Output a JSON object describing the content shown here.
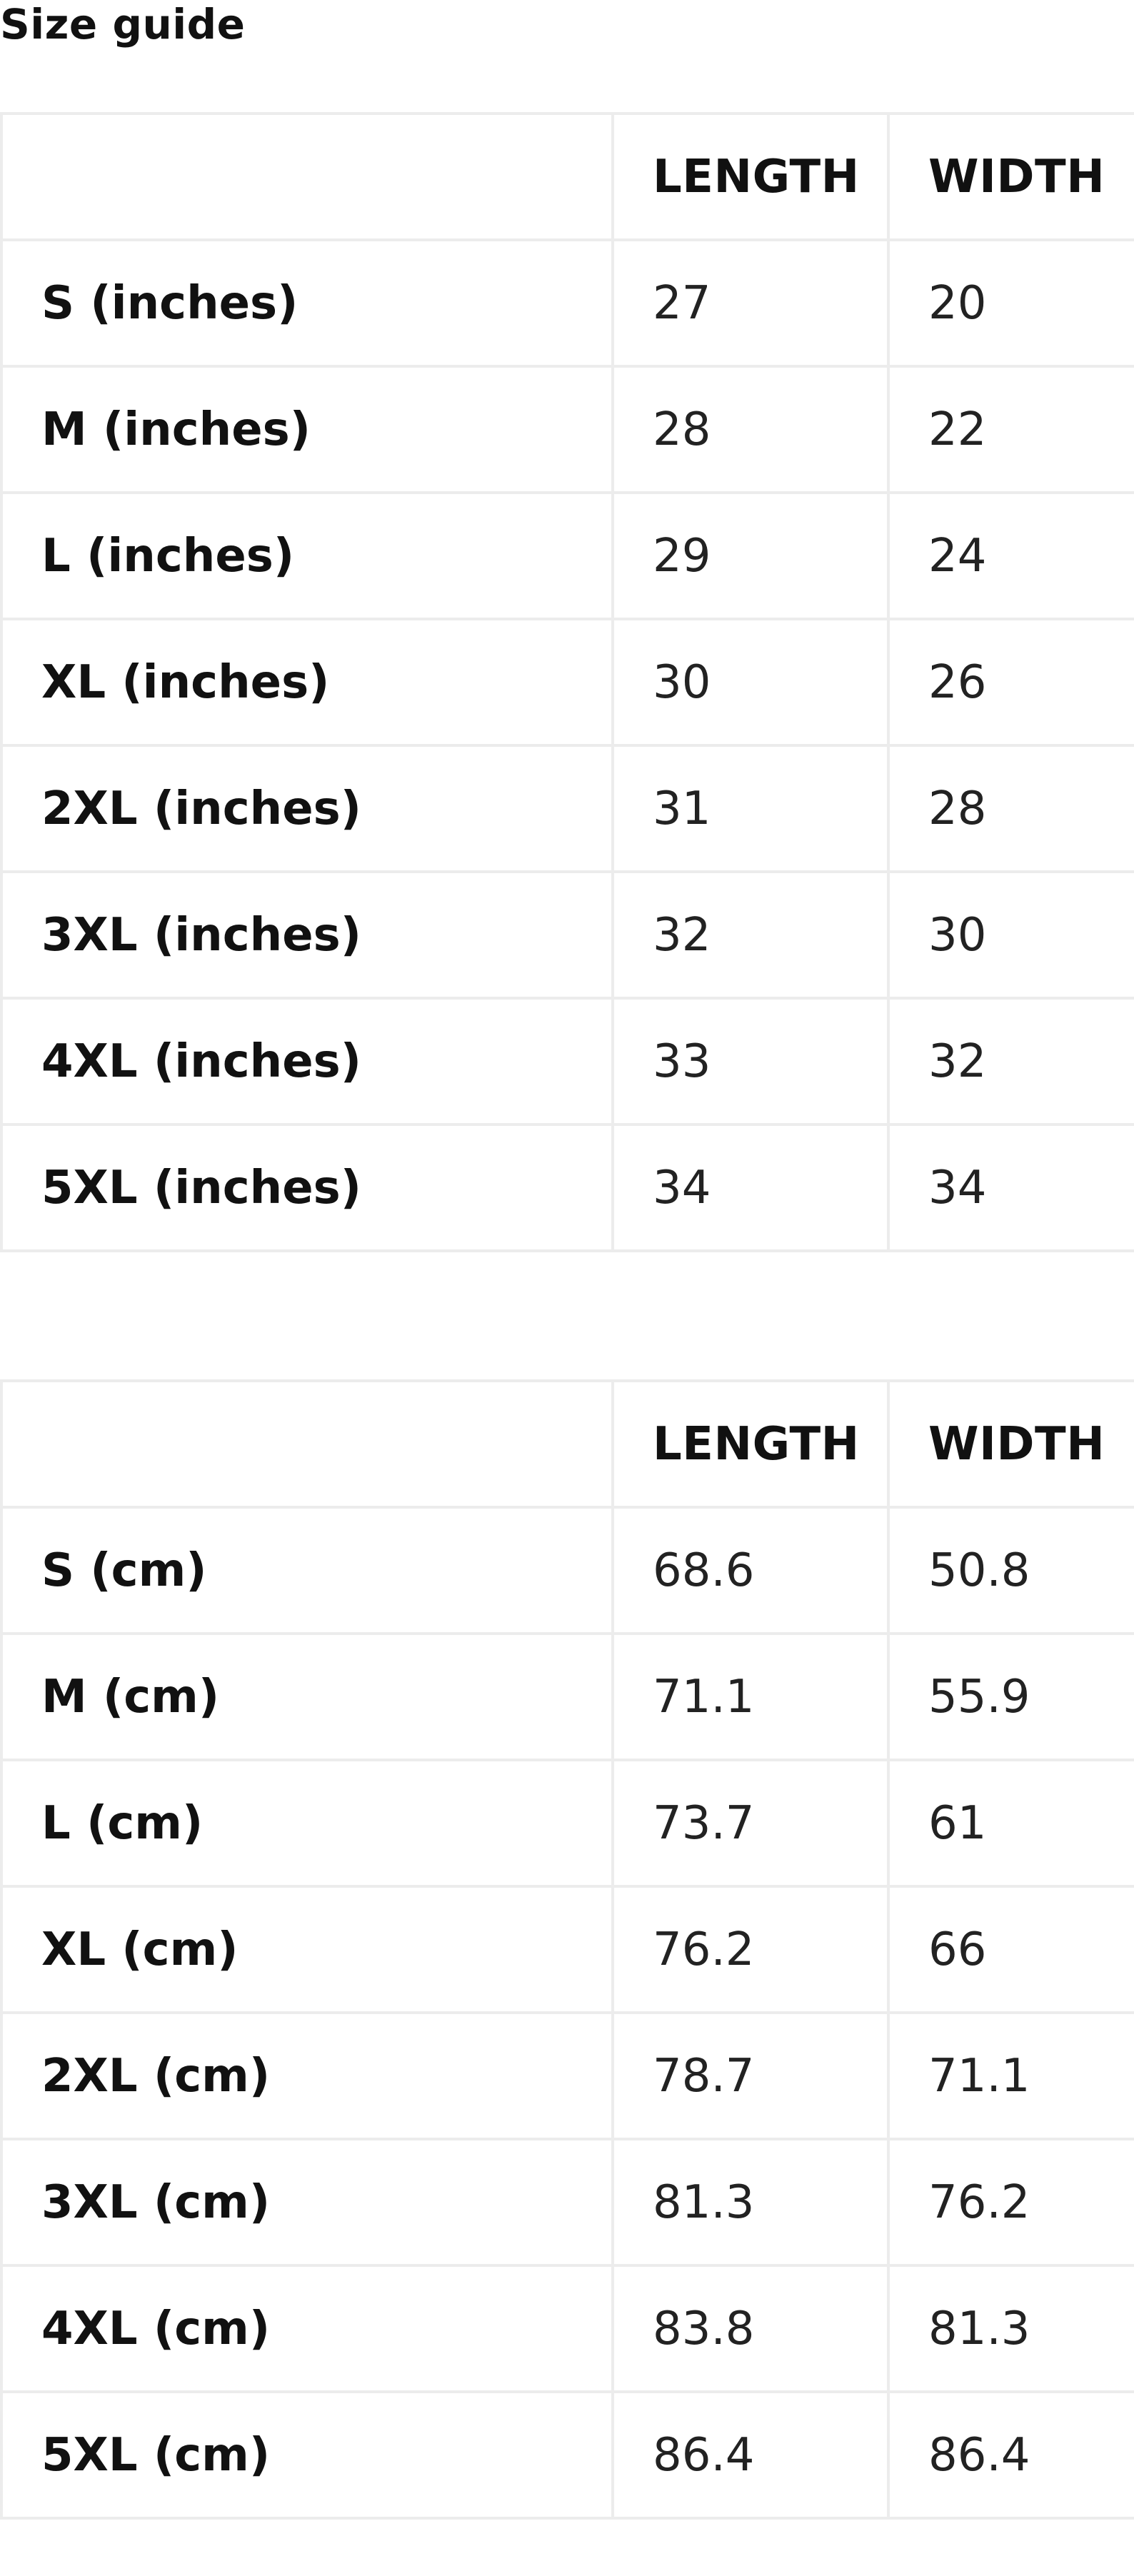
{
  "title": "Size guide",
  "tables": [
    {
      "headers": [
        "",
        "LENGTH",
        "WIDTH"
      ],
      "rows": [
        {
          "size": "S (inches)",
          "length": "27",
          "width": "20"
        },
        {
          "size": "M (inches)",
          "length": "28",
          "width": "22"
        },
        {
          "size": "L (inches)",
          "length": "29",
          "width": "24"
        },
        {
          "size": "XL (inches)",
          "length": "30",
          "width": "26"
        },
        {
          "size": "2XL (inches)",
          "length": "31",
          "width": "28"
        },
        {
          "size": "3XL (inches)",
          "length": "32",
          "width": "30"
        },
        {
          "size": "4XL (inches)",
          "length": "33",
          "width": "32"
        },
        {
          "size": "5XL (inches)",
          "length": "34",
          "width": "34"
        }
      ]
    },
    {
      "headers": [
        "",
        "LENGTH",
        "WIDTH"
      ],
      "rows": [
        {
          "size": "S (cm)",
          "length": "68.6",
          "width": "50.8"
        },
        {
          "size": "M (cm)",
          "length": "71.1",
          "width": "55.9"
        },
        {
          "size": "L (cm)",
          "length": "73.7",
          "width": "61"
        },
        {
          "size": "XL (cm)",
          "length": "76.2",
          "width": "66"
        },
        {
          "size": "2XL (cm)",
          "length": "78.7",
          "width": "71.1"
        },
        {
          "size": "3XL (cm)",
          "length": "81.3",
          "width": "76.2"
        },
        {
          "size": "4XL (cm)",
          "length": "83.8",
          "width": "81.3"
        },
        {
          "size": "5XL (cm)",
          "length": "86.4",
          "width": "86.4"
        }
      ]
    }
  ]
}
